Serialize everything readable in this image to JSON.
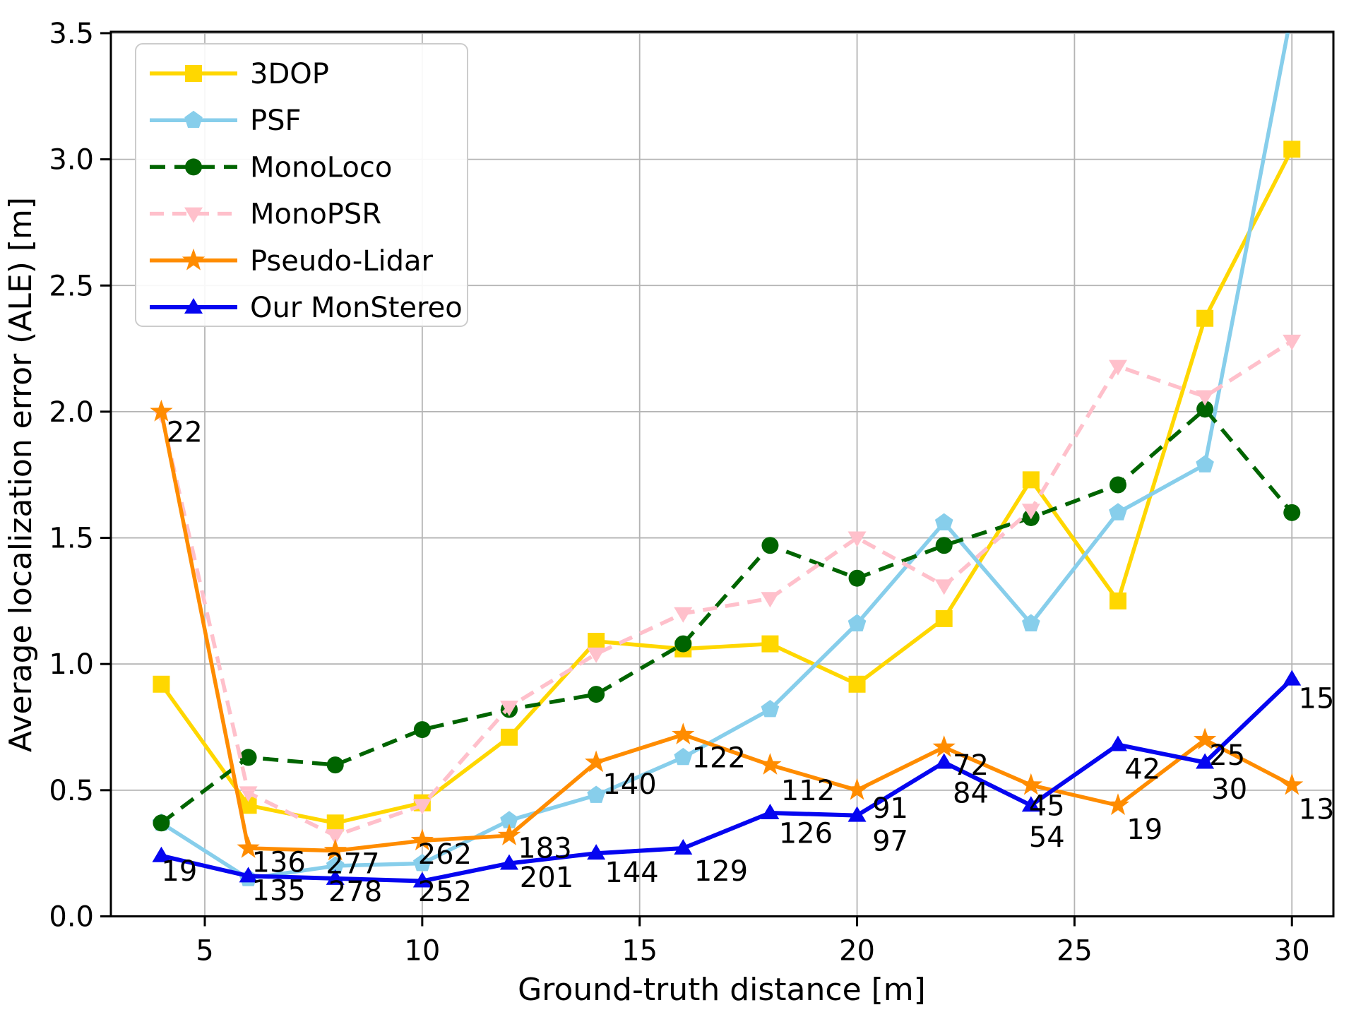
{
  "figure": {
    "xlabel": "Ground-truth distance [m]",
    "ylabel": "Average localization error (ALE) [m]",
    "background": "#ffffff",
    "grid_color": "#b4b4b4",
    "spine_color": "#000000"
  },
  "chart_data": {
    "type": "line",
    "title": "",
    "xlabel": "Ground-truth distance [m]",
    "ylabel": "Average localization error (ALE) [m]",
    "xlim": [
      2.84,
      30.96
    ],
    "ylim": [
      0,
      3.5
    ],
    "grid": true,
    "legend_position": "upper left",
    "x_ticks": [
      5,
      10,
      15,
      20,
      25,
      30
    ],
    "y_ticks": [
      "0.0",
      "0.5",
      "1.0",
      "1.5",
      "2.0",
      "2.5",
      "3.0",
      "3.5"
    ],
    "x": [
      4,
      6,
      8,
      10,
      12,
      14,
      16,
      18,
      20,
      22,
      24,
      26,
      28,
      30
    ],
    "series": [
      {
        "name": "3DOP",
        "color": "#FFD700",
        "marker": "square",
        "dash": null,
        "values": [
          0.92,
          0.44,
          0.37,
          0.45,
          0.71,
          1.09,
          1.06,
          1.08,
          0.92,
          1.18,
          1.73,
          1.25,
          2.37,
          3.04
        ]
      },
      {
        "name": "PSF",
        "color": "#87CEEB",
        "marker": "pentagon",
        "dash": null,
        "values": [
          0.37,
          0.15,
          0.2,
          0.21,
          0.38,
          0.48,
          0.63,
          0.82,
          1.16,
          1.56,
          1.16,
          1.6,
          1.79,
          3.59
        ]
      },
      {
        "name": "MonoLoco",
        "color": "#006400",
        "marker": "circle",
        "dash": [
          22,
          13
        ],
        "values": [
          0.37,
          0.63,
          0.6,
          0.74,
          0.82,
          0.88,
          1.08,
          1.47,
          1.34,
          1.47,
          1.58,
          1.71,
          2.01,
          1.6
        ]
      },
      {
        "name": "MonoPSR",
        "color": "#FFC0CB",
        "marker": "triangle-down",
        "dash": [
          20,
          12
        ],
        "values": [
          1.99,
          0.49,
          0.32,
          0.44,
          0.83,
          1.04,
          1.2,
          1.26,
          1.5,
          1.31,
          1.61,
          2.18,
          2.06,
          2.28
        ]
      },
      {
        "name": "Pseudo-Lidar",
        "color": "#FF8C00",
        "marker": "star",
        "dash": null,
        "values": [
          2.0,
          0.27,
          0.26,
          0.3,
          0.32,
          0.61,
          0.72,
          0.6,
          0.5,
          0.67,
          0.52,
          0.44,
          0.7,
          0.52
        ]
      },
      {
        "name": "Our MonStereo",
        "color": "#0505F0",
        "marker": "triangle-up",
        "dash": null,
        "values": [
          0.24,
          0.16,
          0.15,
          0.14,
          0.21,
          0.25,
          0.27,
          0.41,
          0.4,
          0.61,
          0.44,
          0.68,
          0.61,
          0.94
        ]
      }
    ],
    "annotations": [
      {
        "text": "22",
        "x": 4.12,
        "y": 1.92
      },
      {
        "text": "19",
        "x": 4.0,
        "y": 0.18
      },
      {
        "text": "136",
        "x": 6.08,
        "y": 0.215
      },
      {
        "text": "135",
        "x": 6.08,
        "y": 0.103
      },
      {
        "text": "277",
        "x": 7.78,
        "y": 0.21
      },
      {
        "text": "278",
        "x": 7.84,
        "y": 0.1
      },
      {
        "text": "262",
        "x": 9.9,
        "y": 0.247
      },
      {
        "text": "252",
        "x": 9.9,
        "y": 0.1
      },
      {
        "text": "183",
        "x": 12.2,
        "y": 0.272
      },
      {
        "text": "201",
        "x": 12.24,
        "y": 0.155
      },
      {
        "text": "140",
        "x": 14.15,
        "y": 0.525
      },
      {
        "text": "144",
        "x": 14.2,
        "y": 0.175
      },
      {
        "text": "122",
        "x": 16.2,
        "y": 0.63
      },
      {
        "text": "129",
        "x": 16.25,
        "y": 0.18
      },
      {
        "text": "112",
        "x": 18.25,
        "y": 0.5
      },
      {
        "text": "126",
        "x": 18.2,
        "y": 0.33
      },
      {
        "text": "91",
        "x": 20.35,
        "y": 0.43
      },
      {
        "text": "97",
        "x": 20.35,
        "y": 0.3
      },
      {
        "text": "72",
        "x": 22.2,
        "y": 0.6
      },
      {
        "text": "84",
        "x": 22.2,
        "y": 0.49
      },
      {
        "text": "45",
        "x": 23.95,
        "y": 0.44
      },
      {
        "text": "54",
        "x": 23.95,
        "y": 0.315
      },
      {
        "text": "42",
        "x": 26.15,
        "y": 0.585
      },
      {
        "text": "19",
        "x": 26.2,
        "y": 0.345
      },
      {
        "text": "25",
        "x": 28.1,
        "y": 0.64
      },
      {
        "text": "30",
        "x": 28.15,
        "y": 0.505
      },
      {
        "text": "15",
        "x": 30.15,
        "y": 0.865
      },
      {
        "text": "13",
        "x": 30.15,
        "y": 0.425
      }
    ]
  }
}
